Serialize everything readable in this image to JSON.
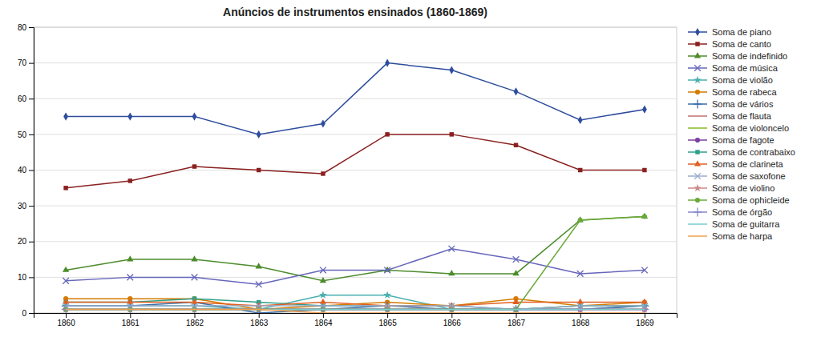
{
  "chart_data": {
    "type": "line",
    "title": "Anúncios de instrumentos ensinados (1860-1869)",
    "x": [
      1860,
      1861,
      1862,
      1863,
      1864,
      1865,
      1866,
      1867,
      1868,
      1869
    ],
    "xlim": [
      1859.5,
      1869.5
    ],
    "xticks": [
      1860,
      1861,
      1862,
      1863,
      1864,
      1865,
      1866,
      1867,
      1868,
      1869
    ],
    "ylim": [
      0,
      80
    ],
    "yticks": [
      0,
      10,
      20,
      30,
      40,
      50,
      60,
      70,
      80
    ],
    "grid": true,
    "legend": "right",
    "series": [
      {
        "name": "Soma de piano",
        "color": "#2e4d9e",
        "marker": "diamond",
        "values": [
          55,
          55,
          55,
          50,
          53,
          70,
          68,
          62,
          54,
          57
        ]
      },
      {
        "name": "Soma de canto",
        "color": "#8b2020",
        "marker": "square",
        "values": [
          35,
          37,
          41,
          40,
          39,
          50,
          50,
          47,
          40,
          40
        ]
      },
      {
        "name": "Soma de indefinido",
        "color": "#4c8c2b",
        "marker": "triangle",
        "values": [
          12,
          15,
          15,
          13,
          9,
          12,
          11,
          11,
          26,
          27
        ]
      },
      {
        "name": "Soma de música",
        "color": "#6666bb",
        "marker": "x",
        "values": [
          9,
          10,
          10,
          8,
          12,
          12,
          18,
          15,
          11,
          12
        ]
      },
      {
        "name": "Soma de violão",
        "color": "#4aafaf",
        "marker": "star",
        "values": [
          2,
          2,
          2,
          1,
          5,
          5,
          1,
          1,
          1,
          2
        ]
      },
      {
        "name": "Soma de rabeca",
        "color": "#d47b00",
        "marker": "circle",
        "values": [
          4,
          4,
          4,
          1,
          2,
          3,
          2,
          4,
          2,
          3
        ]
      },
      {
        "name": "Soma de vários",
        "color": "#3a6ea8",
        "marker": "plus",
        "values": [
          2,
          2,
          3,
          0,
          1,
          2,
          1,
          1,
          1,
          2
        ]
      },
      {
        "name": "Soma de flauta",
        "color": "#c07070",
        "values": [
          1,
          1,
          1,
          1,
          1,
          1,
          1,
          1,
          1,
          1
        ]
      },
      {
        "name": "Soma de violoncelo",
        "color": "#88bb22",
        "values": [
          1,
          1,
          1,
          1,
          1,
          1,
          1,
          1,
          2,
          2
        ]
      },
      {
        "name": "Soma de fagote",
        "color": "#7b3fa0",
        "marker": "circle",
        "values": [
          1,
          1,
          1,
          1,
          1,
          1,
          1,
          1,
          1,
          1
        ]
      },
      {
        "name": "Soma de contrabaixo",
        "color": "#2fa08b",
        "marker": "square",
        "values": [
          3,
          3,
          4,
          3,
          2,
          2,
          2,
          1,
          2,
          2
        ]
      },
      {
        "name": "Soma de clarineta",
        "color": "#e06020",
        "marker": "triangle",
        "values": [
          3,
          3,
          3,
          2,
          3,
          2,
          2,
          3,
          3,
          3
        ]
      },
      {
        "name": "Soma de saxofone",
        "color": "#9aadcc",
        "marker": "x",
        "values": [
          2,
          2,
          2,
          2,
          2,
          2,
          2,
          1,
          2,
          2
        ]
      },
      {
        "name": "Soma de violino",
        "color": "#cc8888",
        "marker": "star",
        "values": [
          1,
          1,
          1,
          1,
          1,
          1,
          1,
          1,
          1,
          1
        ]
      },
      {
        "name": "Soma de ophicleide",
        "color": "#6baa3a",
        "marker": "circle",
        "values": [
          1,
          1,
          1,
          1,
          1,
          1,
          1,
          1,
          26,
          27
        ]
      },
      {
        "name": "Soma de órgão",
        "color": "#8888cc",
        "marker": "plus",
        "values": [
          1,
          1,
          1,
          1,
          1,
          1,
          1,
          1,
          1,
          1
        ]
      },
      {
        "name": "Soma de guitarra",
        "color": "#7acece",
        "values": [
          1,
          1,
          1,
          1,
          1,
          1,
          1,
          1,
          1,
          1
        ]
      },
      {
        "name": "Soma de harpa",
        "color": "#f0a050",
        "values": [
          1,
          1,
          1,
          1,
          0,
          0,
          0,
          0,
          0,
          0
        ]
      }
    ]
  }
}
